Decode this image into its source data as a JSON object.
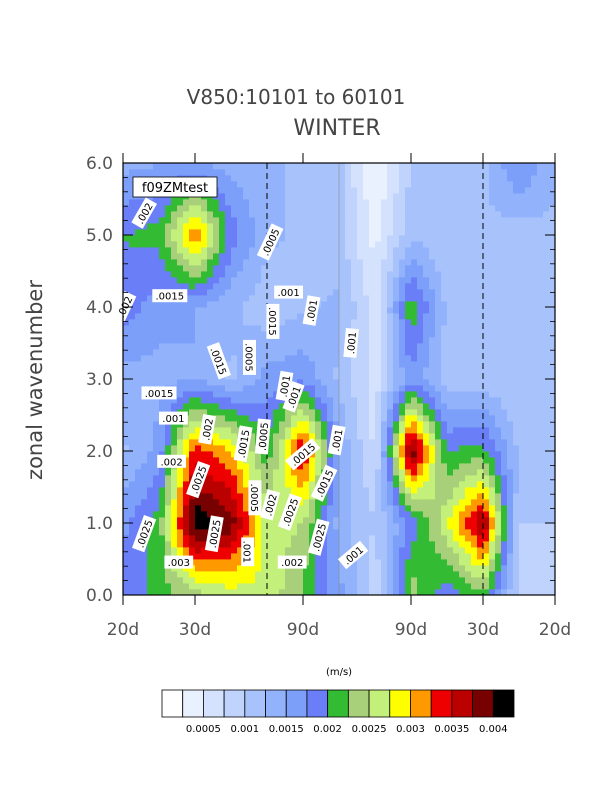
{
  "chart_data": {
    "type": "heatmap",
    "title": "V850:10101 to 60101",
    "subtitle": "WINTER",
    "ylabel": "zonal wavenumber",
    "units": "(m/s)",
    "panel_label": "f09ZMtest",
    "y_ticks": [
      "0.0",
      "1.0",
      "2.0",
      "3.0",
      "4.0",
      "5.0",
      "6.0"
    ],
    "x_ticks": [
      "20d",
      "30d",
      "90d",
      "90d",
      "30d",
      "20d"
    ],
    "ylim": [
      0,
      6
    ],
    "x_count": 13,
    "z_rows": [
      [
        0.0018,
        0.0021,
        0.0024,
        0.0026,
        0.0027,
        0.0022,
        0.0016,
        0.0008,
        0.0024,
        0.0018,
        0.0022,
        0.0009,
        0.0008
      ],
      [
        0.0017,
        0.0021,
        0.0042,
        0.0039,
        0.0026,
        0.0025,
        0.0014,
        0.001,
        0.0018,
        0.0027,
        0.0038,
        0.001,
        0.001
      ],
      [
        0.0012,
        0.0016,
        0.0034,
        0.003,
        0.0021,
        0.0036,
        0.0015,
        0.0007,
        0.004,
        0.002,
        0.0021,
        0.0012,
        0.001
      ],
      [
        0.0014,
        0.0014,
        0.0015,
        0.0012,
        0.0016,
        0.0017,
        0.0012,
        0.0006,
        0.0017,
        0.0011,
        0.0011,
        0.001,
        0.0011
      ],
      [
        0.0019,
        0.0016,
        0.0015,
        0.0013,
        0.0011,
        0.0012,
        0.0013,
        0.0006,
        0.0022,
        0.0012,
        0.0011,
        0.001,
        0.0011
      ],
      [
        0.002,
        0.0021,
        0.0033,
        0.0019,
        0.0013,
        0.0012,
        0.0011,
        0.0004,
        0.0012,
        0.001,
        0.0012,
        0.0011,
        0.0012
      ],
      [
        0.0014,
        0.0015,
        0.0015,
        0.0014,
        0.0013,
        0.0012,
        0.0011,
        0.0002,
        0.001,
        0.0011,
        0.0012,
        0.0018,
        0.0013
      ]
    ],
    "contour_labels": [
      {
        "text": ".002",
        "x": 0.6,
        "y": 5.3,
        "angle": -60
      },
      {
        "text": ".0015",
        "x": 1.3,
        "y": 4.15,
        "angle": 0
      },
      {
        "text": ".002",
        "x": 0.05,
        "y": 4.0,
        "angle": -65
      },
      {
        "text": ".0015",
        "x": 1.0,
        "y": 2.8,
        "angle": 0
      },
      {
        "text": ".001",
        "x": 1.4,
        "y": 2.45,
        "angle": 0
      },
      {
        "text": ".002",
        "x": 1.35,
        "y": 1.85,
        "angle": 0
      },
      {
        "text": ".0025",
        "x": 0.6,
        "y": 0.85,
        "angle": -70
      },
      {
        "text": ".003",
        "x": 1.55,
        "y": 0.45,
        "angle": 0
      },
      {
        "text": ".0025",
        "x": 2.1,
        "y": 1.6,
        "angle": -70
      },
      {
        "text": ".002",
        "x": 2.35,
        "y": 2.3,
        "angle": -80
      },
      {
        "text": ".0015",
        "x": 2.65,
        "y": 3.25,
        "angle": 70
      },
      {
        "text": ".0025",
        "x": 2.55,
        "y": 0.85,
        "angle": -80
      },
      {
        "text": ".0015",
        "x": 3.35,
        "y": 2.1,
        "angle": -80
      },
      {
        "text": ".0005",
        "x": 3.5,
        "y": 3.3,
        "angle": 90
      },
      {
        "text": ".0005",
        "x": 3.9,
        "y": 2.2,
        "angle": -85
      },
      {
        "text": ".0005",
        "x": 3.65,
        "y": 1.35,
        "angle": 90
      },
      {
        "text": ".001",
        "x": 3.45,
        "y": 0.6,
        "angle": 90
      },
      {
        "text": ".0005",
        "x": 4.1,
        "y": 4.9,
        "angle": -65
      },
      {
        "text": ".0015",
        "x": 4.15,
        "y": 3.8,
        "angle": 90
      },
      {
        "text": ".001",
        "x": 4.6,
        "y": 4.2,
        "angle": 0
      },
      {
        "text": ".001",
        "x": 4.5,
        "y": 2.9,
        "angle": -80
      },
      {
        "text": ".002",
        "x": 4.1,
        "y": 1.25,
        "angle": -75
      },
      {
        "text": ".001",
        "x": 4.75,
        "y": 2.75,
        "angle": -70
      },
      {
        "text": ".0015",
        "x": 5.0,
        "y": 1.95,
        "angle": -40
      },
      {
        "text": ".0025",
        "x": 4.65,
        "y": 1.15,
        "angle": -70
      },
      {
        "text": ".002",
        "x": 4.7,
        "y": 0.45,
        "angle": 0
      },
      {
        "text": ".0025",
        "x": 5.45,
        "y": 0.8,
        "angle": -75
      },
      {
        "text": ".0015",
        "x": 5.6,
        "y": 1.55,
        "angle": -65
      },
      {
        "text": ".001",
        "x": 5.25,
        "y": 3.95,
        "angle": -80
      },
      {
        "text": ".001",
        "x": 5.95,
        "y": 2.15,
        "angle": -80
      },
      {
        "text": ".001",
        "x": 6.35,
        "y": 3.5,
        "angle": -85
      },
      {
        "text": ".001",
        "x": 6.4,
        "y": 0.55,
        "angle": -40
      }
    ],
    "legend": {
      "levels": [
        0.00025,
        0.0005,
        0.00075,
        0.001,
        0.00125,
        0.0015,
        0.00175,
        0.002,
        0.00225,
        0.0025,
        0.00275,
        0.003,
        0.00325,
        0.0035,
        0.00375,
        0.004
      ],
      "colors": [
        "#ffffff",
        "#eaf1fe",
        "#d5e2fe",
        "#bfd3fd",
        "#a8c3fc",
        "#92b3fb",
        "#7c9ffa",
        "#6a7ef7",
        "#33bb33",
        "#a8d07a",
        "#c2f07a",
        "#ffff00",
        "#ff9900",
        "#ee0000",
        "#bb0000",
        "#770000",
        "#000000"
      ],
      "labels": [
        "0.0005",
        "0.001",
        "0.0015",
        "0.002",
        "0.0025",
        "0.003",
        "0.0035",
        "0.004"
      ]
    },
    "grid": false
  }
}
